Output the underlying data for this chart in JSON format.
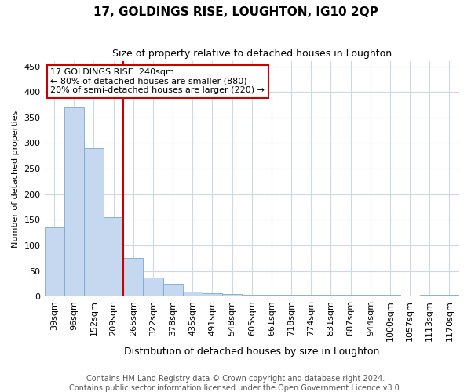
{
  "title": "17, GOLDINGS RISE, LOUGHTON, IG10 2QP",
  "subtitle": "Size of property relative to detached houses in Loughton",
  "xlabel": "Distribution of detached houses by size in Loughton",
  "ylabel": "Number of detached properties",
  "bar_labels": [
    "39sqm",
    "96sqm",
    "152sqm",
    "209sqm",
    "265sqm",
    "322sqm",
    "378sqm",
    "435sqm",
    "491sqm",
    "548sqm",
    "605sqm",
    "661sqm",
    "718sqm",
    "774sqm",
    "831sqm",
    "887sqm",
    "944sqm",
    "1000sqm",
    "1057sqm",
    "1113sqm",
    "1170sqm"
  ],
  "bar_values": [
    135,
    370,
    290,
    155,
    75,
    37,
    25,
    10,
    7,
    5,
    4,
    4,
    3,
    3,
    3,
    3,
    3,
    3,
    0,
    4,
    3
  ],
  "bar_color": "#c5d8f0",
  "bar_edge_color": "#7aaad0",
  "vline_position": 3.5,
  "vline_color": "#cc0000",
  "annotation_line1": "17 GOLDINGS RISE: 240sqm",
  "annotation_line2": "← 80% of detached houses are smaller (880)",
  "annotation_line3": "20% of semi-detached houses are larger (220) →",
  "annotation_box_color": "#ffffff",
  "annotation_box_edge": "#cc0000",
  "ylim": [
    0,
    460
  ],
  "yticks": [
    0,
    50,
    100,
    150,
    200,
    250,
    300,
    350,
    400,
    450
  ],
  "footer1": "Contains HM Land Registry data © Crown copyright and database right 2024.",
  "footer2": "Contains public sector information licensed under the Open Government Licence v3.0.",
  "background_color": "#ffffff",
  "grid_color": "#ccd8e8",
  "title_fontsize": 11,
  "subtitle_fontsize": 9,
  "ylabel_fontsize": 8,
  "xlabel_fontsize": 9,
  "annotation_fontsize": 8,
  "tick_fontsize": 8,
  "footer_fontsize": 7
}
